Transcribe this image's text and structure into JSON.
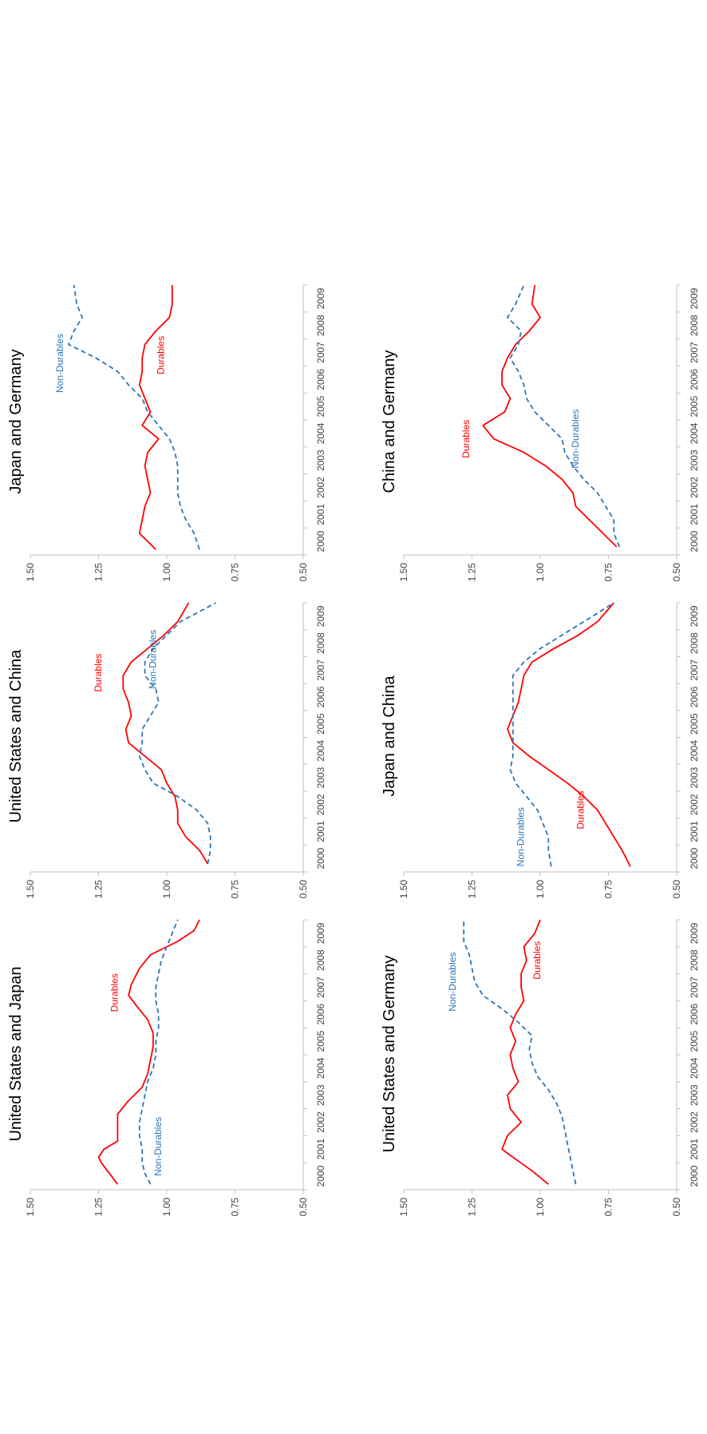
{
  "colors": {
    "durables": "#ff0000",
    "non_durables": "#2e75b6",
    "axis": "#bfbfbf",
    "text": "#404040"
  },
  "chart_data": [
    {
      "type": "line",
      "title": "United States and Japan",
      "x_ticks": [
        "2000",
        "2001",
        "2002",
        "2003",
        "2004",
        "2005",
        "2006",
        "2007",
        "2008",
        "2009"
      ],
      "xlim": [
        2000,
        2010
      ],
      "y_ticks": [
        "0.50",
        "0.75",
        "1.00",
        "1.25",
        "1.50"
      ],
      "ylim": [
        0.5,
        1.5
      ],
      "grid": false,
      "series": [
        {
          "name": "Durables",
          "style": "solid",
          "x": [
            2000.2,
            2000.6,
            2001.0,
            2001.2,
            2001.5,
            2001.8,
            2002.3,
            2002.8,
            2003.3,
            2003.8,
            2004.3,
            2004.8,
            2005.3,
            2005.8,
            2006.3,
            2006.8,
            2007.2,
            2007.6,
            2008.2,
            2008.7,
            2009.2,
            2009.6,
            2010.0
          ],
          "y": [
            1.18,
            1.21,
            1.24,
            1.25,
            1.23,
            1.18,
            1.18,
            1.18,
            1.14,
            1.09,
            1.07,
            1.06,
            1.05,
            1.05,
            1.07,
            1.11,
            1.14,
            1.13,
            1.1,
            1.06,
            0.96,
            0.9,
            0.88
          ],
          "label_pos": [
            2007.3,
            1.18
          ]
        },
        {
          "name": "Non-Durables",
          "style": "dashed",
          "x": [
            2000.2,
            2000.6,
            2001.0,
            2001.5,
            2002.0,
            2002.5,
            2003.0,
            2003.5,
            2004.0,
            2004.5,
            2005.0,
            2005.5,
            2006.0,
            2006.5,
            2007.0,
            2007.5,
            2008.0,
            2008.5,
            2009.0,
            2009.5,
            2010.0
          ],
          "y": [
            1.06,
            1.08,
            1.09,
            1.09,
            1.1,
            1.1,
            1.09,
            1.08,
            1.07,
            1.05,
            1.04,
            1.04,
            1.03,
            1.03,
            1.04,
            1.04,
            1.03,
            1.02,
            1.0,
            0.98,
            0.96
          ],
          "label_pos": [
            2001.6,
            1.02
          ]
        }
      ]
    },
    {
      "type": "line",
      "title": "United States and China",
      "x_ticks": [
        "2000",
        "2001",
        "2002",
        "2003",
        "2004",
        "2005",
        "2006",
        "2007",
        "2008",
        "2009"
      ],
      "xlim": [
        2000,
        2010
      ],
      "y_ticks": [
        "0.50",
        "0.75",
        "1.00",
        "1.25",
        "1.50"
      ],
      "ylim": [
        0.5,
        1.5
      ],
      "grid": false,
      "series": [
        {
          "name": "Durables",
          "style": "solid",
          "x": [
            2000.3,
            2000.8,
            2001.3,
            2001.8,
            2002.3,
            2002.8,
            2003.3,
            2003.8,
            2004.3,
            2004.8,
            2005.3,
            2005.8,
            2006.3,
            2006.8,
            2007.3,
            2007.8,
            2008.3,
            2008.8,
            2009.3,
            2010.0
          ],
          "y": [
            0.85,
            0.88,
            0.93,
            0.96,
            0.96,
            0.97,
            1.0,
            1.02,
            1.08,
            1.14,
            1.15,
            1.13,
            1.14,
            1.16,
            1.16,
            1.13,
            1.07,
            1.01,
            0.96,
            0.92
          ],
          "label_pos": [
            2007.4,
            1.24
          ]
        },
        {
          "name": "Non-Durables",
          "style": "dashed",
          "x": [
            2000.3,
            2000.8,
            2001.3,
            2001.8,
            2002.3,
            2002.8,
            2003.3,
            2003.8,
            2004.3,
            2004.8,
            2005.3,
            2005.8,
            2006.3,
            2006.8,
            2007.3,
            2007.8,
            2008.3,
            2008.8,
            2009.3,
            2010.0
          ],
          "y": [
            0.85,
            0.84,
            0.84,
            0.85,
            0.89,
            0.96,
            1.05,
            1.08,
            1.1,
            1.09,
            1.09,
            1.06,
            1.03,
            1.04,
            1.08,
            1.08,
            1.05,
            1.0,
            0.95,
            0.82
          ],
          "label_pos": [
            2007.9,
            1.04
          ]
        }
      ]
    },
    {
      "type": "line",
      "title": "Japan and Germany",
      "x_ticks": [
        "2000",
        "2001",
        "2002",
        "2003",
        "2004",
        "2005",
        "2006",
        "2007",
        "2008",
        "2009"
      ],
      "xlim": [
        2000,
        2010
      ],
      "y_ticks": [
        "0.50",
        "0.75",
        "1.00",
        "1.25",
        "1.50"
      ],
      "ylim": [
        0.5,
        1.5
      ],
      "grid": false,
      "series": [
        {
          "name": "Durables",
          "style": "solid",
          "x": [
            2000.2,
            2000.8,
            2001.3,
            2001.8,
            2002.3,
            2002.8,
            2003.3,
            2003.8,
            2004.3,
            2004.8,
            2005.3,
            2005.8,
            2006.3,
            2006.8,
            2007.3,
            2007.8,
            2008.3,
            2008.8,
            2009.3,
            2010.0
          ],
          "y": [
            1.04,
            1.1,
            1.09,
            1.08,
            1.06,
            1.07,
            1.08,
            1.07,
            1.03,
            1.09,
            1.06,
            1.08,
            1.1,
            1.09,
            1.09,
            1.08,
            1.04,
            0.99,
            0.98,
            0.98
          ],
          "label_pos": [
            2007.4,
            1.01
          ]
        },
        {
          "name": "Non-Durables",
          "style": "dashed",
          "x": [
            2000.2,
            2000.8,
            2001.3,
            2001.8,
            2002.3,
            2002.8,
            2003.3,
            2003.8,
            2004.3,
            2004.8,
            2005.3,
            2005.8,
            2006.3,
            2006.8,
            2007.3,
            2007.8,
            2008.3,
            2008.8,
            2009.3,
            2010.0
          ],
          "y": [
            0.88,
            0.9,
            0.93,
            0.95,
            0.96,
            0.96,
            0.96,
            0.97,
            0.99,
            1.03,
            1.07,
            1.09,
            1.14,
            1.18,
            1.26,
            1.36,
            1.34,
            1.31,
            1.33,
            1.34
          ],
          "label_pos": [
            2007.1,
            1.38
          ]
        }
      ]
    },
    {
      "type": "line",
      "title": "United States and Germany",
      "x_ticks": [
        "2000",
        "2001",
        "2002",
        "2003",
        "2004",
        "2005",
        "2006",
        "2007",
        "2008",
        "2009"
      ],
      "xlim": [
        2000,
        2010
      ],
      "y_ticks": [
        "0.50",
        "0.75",
        "1.00",
        "1.25",
        "1.50"
      ],
      "ylim": [
        0.5,
        1.5
      ],
      "grid": false,
      "series": [
        {
          "name": "Durables",
          "style": "solid",
          "x": [
            2000.2,
            2000.7,
            2001.2,
            2001.5,
            2002.0,
            2002.5,
            2003.0,
            2003.5,
            2004.0,
            2004.5,
            2005.0,
            2005.5,
            2006.0,
            2006.5,
            2007.0,
            2007.5,
            2008.0,
            2008.5,
            2009.0,
            2009.5,
            2010.0
          ],
          "y": [
            0.97,
            1.03,
            1.1,
            1.14,
            1.12,
            1.07,
            1.11,
            1.12,
            1.08,
            1.1,
            1.11,
            1.09,
            1.11,
            1.09,
            1.06,
            1.07,
            1.07,
            1.05,
            1.06,
            1.02,
            1.0
          ],
          "label_pos": [
            2008.5,
            1.0
          ]
        },
        {
          "name": "Non-Durables",
          "style": "dashed",
          "x": [
            2000.2,
            2000.7,
            2001.2,
            2001.7,
            2002.2,
            2002.7,
            2003.2,
            2003.7,
            2004.2,
            2004.7,
            2005.2,
            2005.7,
            2006.2,
            2006.7,
            2007.2,
            2007.7,
            2008.2,
            2008.7,
            2009.2,
            2010.0
          ],
          "y": [
            0.87,
            0.88,
            0.89,
            0.9,
            0.91,
            0.92,
            0.94,
            0.97,
            1.01,
            1.03,
            1.04,
            1.03,
            1.08,
            1.14,
            1.21,
            1.24,
            1.25,
            1.26,
            1.28,
            1.28
          ],
          "label_pos": [
            2007.7,
            1.31
          ]
        }
      ]
    },
    {
      "type": "line",
      "title": "Japan and China",
      "x_ticks": [
        "2000",
        "2001",
        "2002",
        "2003",
        "2004",
        "2005",
        "2006",
        "2007",
        "2008",
        "2009"
      ],
      "xlim": [
        2000,
        2010
      ],
      "y_ticks": [
        "0.50",
        "0.75",
        "1.00",
        "1.25",
        "1.50"
      ],
      "ylim": [
        0.5,
        1.5
      ],
      "grid": false,
      "series": [
        {
          "name": "Durables",
          "style": "solid",
          "x": [
            2000.2,
            2000.8,
            2001.3,
            2001.8,
            2002.3,
            2002.8,
            2003.3,
            2003.8,
            2004.3,
            2004.8,
            2005.3,
            2005.8,
            2006.3,
            2006.8,
            2007.3,
            2007.8,
            2008.3,
            2008.8,
            2009.3,
            2010.0
          ],
          "y": [
            0.67,
            0.7,
            0.73,
            0.76,
            0.79,
            0.84,
            0.9,
            0.97,
            1.04,
            1.1,
            1.12,
            1.1,
            1.08,
            1.07,
            1.06,
            1.03,
            0.95,
            0.86,
            0.79,
            0.73
          ],
          "label_pos": [
            2002.3,
            0.84
          ]
        },
        {
          "name": "Non-Durables",
          "style": "dashed",
          "x": [
            2000.2,
            2000.8,
            2001.3,
            2001.8,
            2002.3,
            2002.8,
            2003.3,
            2003.8,
            2004.3,
            2004.8,
            2005.3,
            2005.8,
            2006.3,
            2006.8,
            2007.3,
            2007.8,
            2008.3,
            2008.8,
            2009.3,
            2010.0
          ],
          "y": [
            0.96,
            0.97,
            0.97,
            0.99,
            1.01,
            1.05,
            1.09,
            1.11,
            1.1,
            1.1,
            1.1,
            1.1,
            1.1,
            1.1,
            1.1,
            1.06,
            1.0,
            0.92,
            0.84,
            0.73
          ],
          "label_pos": [
            2001.3,
            1.06
          ]
        }
      ]
    },
    {
      "type": "line",
      "title": "China and Germany",
      "x_ticks": [
        "2000",
        "2001",
        "2002",
        "2003",
        "2004",
        "2005",
        "2006",
        "2007",
        "2008",
        "2009"
      ],
      "xlim": [
        2000,
        2010
      ],
      "y_ticks": [
        "0.50",
        "0.75",
        "1.00",
        "1.25",
        "1.50"
      ],
      "ylim": [
        0.5,
        1.5
      ],
      "grid": false,
      "series": [
        {
          "name": "Durables",
          "style": "solid",
          "x": [
            2000.3,
            2000.8,
            2001.3,
            2001.8,
            2002.3,
            2002.8,
            2003.3,
            2003.8,
            2004.3,
            2004.8,
            2005.3,
            2005.8,
            2006.3,
            2006.8,
            2007.3,
            2007.8,
            2008.3,
            2008.8,
            2009.3,
            2010.0
          ],
          "y": [
            0.72,
            0.77,
            0.82,
            0.87,
            0.88,
            0.92,
            0.98,
            1.06,
            1.17,
            1.21,
            1.13,
            1.11,
            1.14,
            1.14,
            1.12,
            1.09,
            1.04,
            1.0,
            1.03,
            1.02
          ],
          "label_pos": [
            2004.3,
            1.26
          ]
        },
        {
          "name": "Non-Durables",
          "style": "dashed",
          "x": [
            2000.3,
            2000.8,
            2001.3,
            2001.8,
            2002.3,
            2002.8,
            2003.3,
            2003.8,
            2004.3,
            2004.8,
            2005.3,
            2005.8,
            2006.3,
            2006.8,
            2007.3,
            2007.8,
            2008.3,
            2008.8,
            2009.3,
            2010.0
          ],
          "y": [
            0.71,
            0.73,
            0.73,
            0.76,
            0.79,
            0.84,
            0.88,
            0.91,
            0.92,
            0.97,
            1.02,
            1.05,
            1.06,
            1.08,
            1.11,
            1.08,
            1.07,
            1.12,
            1.09,
            1.06
          ],
          "label_pos": [
            2004.3,
            0.86
          ]
        }
      ]
    }
  ]
}
